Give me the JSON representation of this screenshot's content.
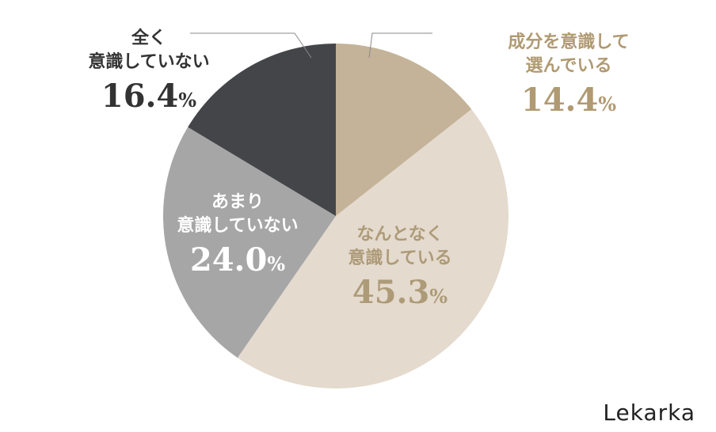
{
  "chart_data": {
    "type": "pie",
    "start": "12 o'clock",
    "direction": "clockwise",
    "slices": [
      {
        "label_lines": [
          "成分を意識して",
          "選んでいる"
        ],
        "value": 14.4,
        "value_text": "14.4",
        "color": "#c4b398",
        "label_color": "#b09a72"
      },
      {
        "label_lines": [
          "なんとなく",
          "意識している"
        ],
        "value": 45.3,
        "value_text": "45.3",
        "color": "#e4dace",
        "label_color": "#ad9b78"
      },
      {
        "label_lines": [
          "あまり",
          "意識していない"
        ],
        "value": 24.0,
        "value_text": "24.0",
        "color": "#a6a6a6",
        "label_color": "#ffffff"
      },
      {
        "label_lines": [
          "全く",
          "意識していない"
        ],
        "value": 16.4,
        "value_text": "16.4",
        "color": "#444548",
        "label_color": "#333333"
      }
    ],
    "percent_sign": "%"
  },
  "brand": "Lekarka"
}
